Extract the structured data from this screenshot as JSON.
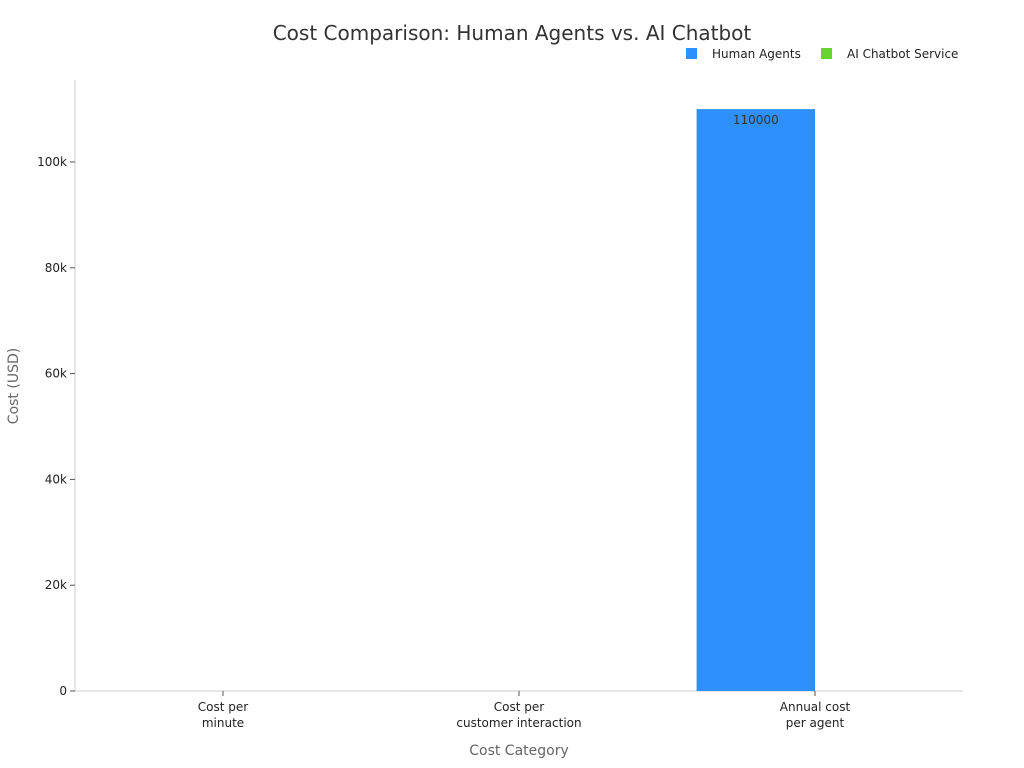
{
  "chart_data": {
    "type": "bar",
    "title": "Cost Comparison: Human Agents vs. AI Chatbot",
    "xlabel": "Cost Category",
    "ylabel": "Cost (USD)",
    "categories": [
      [
        "Cost per",
        "minute"
      ],
      [
        "Cost per",
        "customer interaction"
      ],
      [
        "Annual cost",
        "per agent"
      ]
    ],
    "series": [
      {
        "name": "Human Agents",
        "color": "#2E90FA",
        "values": [
          1,
          6,
          110000
        ]
      },
      {
        "name": "AI Chatbot Service",
        "color": "#66D62E",
        "values": [
          0.1,
          0.5,
          0
        ]
      }
    ],
    "data_labels": [
      {
        "series": 0,
        "category": 2,
        "text": "110000"
      }
    ],
    "ylim": [
      0,
      115500
    ],
    "yticks": [
      0,
      20000,
      40000,
      60000,
      80000,
      100000
    ],
    "ytick_labels": [
      "0",
      "20k",
      "40k",
      "60k",
      "80k",
      "100k"
    ],
    "grid": false,
    "legend_position": "top-right"
  }
}
